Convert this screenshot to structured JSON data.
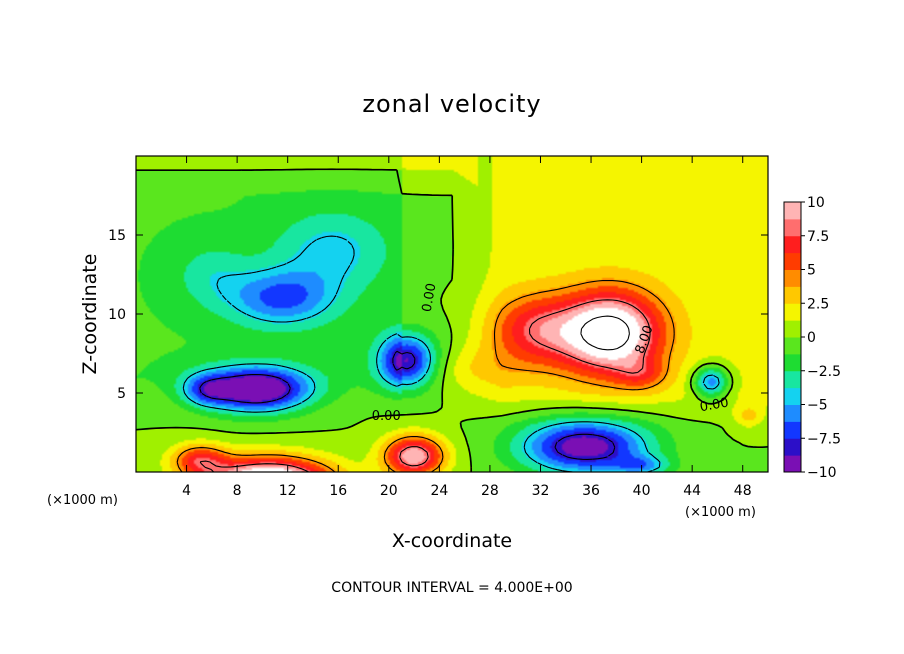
{
  "chart_data": {
    "type": "heatmap",
    "title": "zonal velocity",
    "xlabel": "X-coordinate",
    "ylabel": "Z-coordinate",
    "x_unit_left": "(×1000 m)",
    "x_unit_right": "(×1000 m)",
    "xlim": [
      0,
      50
    ],
    "ylim": [
      0,
      20
    ],
    "x_ticks": [
      4,
      8,
      12,
      16,
      20,
      24,
      28,
      32,
      36,
      40,
      44,
      48
    ],
    "x_tick_labels": [
      "4",
      "8",
      "12",
      "16",
      "20",
      "24",
      "28",
      "32",
      "36",
      "40",
      "44",
      "48"
    ],
    "y_ticks": [
      5,
      10,
      15
    ],
    "y_tick_labels": [
      "5",
      "10",
      "15"
    ],
    "colorbar": {
      "min": -10,
      "max": 10,
      "ticks": [
        10,
        7.5,
        5,
        2.5,
        0,
        -2.5,
        -5,
        -7.5,
        -10
      ],
      "tick_labels": [
        "10",
        "7.5",
        "5",
        "2.5",
        "0",
        "−2.5",
        "−5",
        "−7.5",
        "−10"
      ],
      "colors": [
        "#7a0fb4",
        "#2c0fc8",
        "#1237ff",
        "#1e8cff",
        "#14d2f0",
        "#18e6a0",
        "#1edc32",
        "#5ae61e",
        "#a0f000",
        "#f5f500",
        "#ffc800",
        "#ff8c00",
        "#ff3c00",
        "#ff1e1e",
        "#ff6e6e",
        "#ffb4b4"
      ]
    },
    "contour_interval_text": "CONTOUR INTERVAL = 4.000E+00",
    "contour_labels": [
      {
        "text": "0.00",
        "x": 23.5,
        "z": 11.0,
        "rotate": -80
      },
      {
        "text": "0.00",
        "x": 19.8,
        "z": 3.3,
        "rotate": 0
      },
      {
        "text": "8.00",
        "x": 40.5,
        "z": 8.3,
        "rotate": -70
      },
      {
        "text": "0.00",
        "x": 45.8,
        "z": 4.0,
        "rotate": -10
      }
    ],
    "features": [
      {
        "x": 37.5,
        "z": 8.8,
        "value": 10.5
      },
      {
        "x": 10.5,
        "z": 0.3,
        "value": 11
      },
      {
        "x": 22.0,
        "z": 1.2,
        "value": 9
      },
      {
        "x": 9.5,
        "z": 5.3,
        "value": -9
      },
      {
        "x": 21.5,
        "z": 7.0,
        "value": -8
      },
      {
        "x": 35.5,
        "z": 2.0,
        "value": -8.5
      },
      {
        "x": 12.0,
        "z": 10.8,
        "value": -5
      },
      {
        "x": 15.0,
        "z": 14.0,
        "value": -3
      },
      {
        "x": 45.5,
        "z": 5.8,
        "value": -6
      }
    ]
  }
}
